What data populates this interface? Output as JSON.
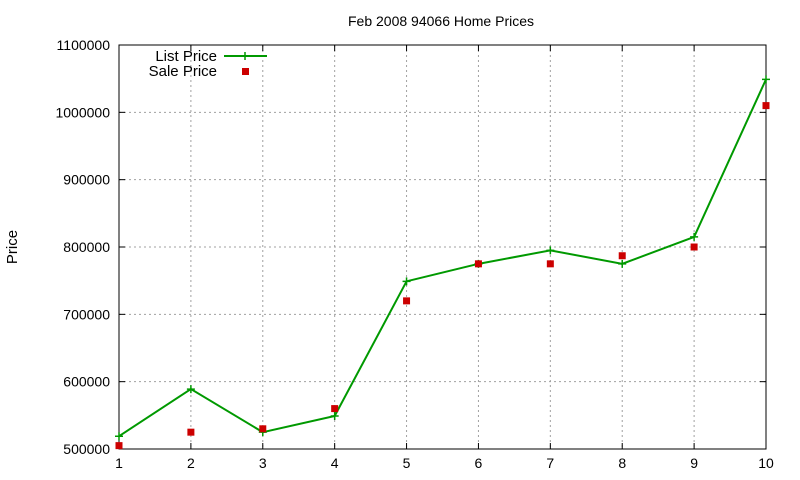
{
  "chart_data": {
    "type": "line",
    "title": "Feb 2008 94066 Home Prices",
    "xlabel": "",
    "ylabel": "Price",
    "x": [
      1,
      2,
      3,
      4,
      5,
      6,
      7,
      8,
      9,
      10
    ],
    "xlim": [
      1,
      10
    ],
    "ylim": [
      500000,
      1100000
    ],
    "yticks": [
      500000,
      600000,
      700000,
      800000,
      900000,
      1000000,
      1100000
    ],
    "xticks": [
      1,
      2,
      3,
      4,
      5,
      6,
      7,
      8,
      9,
      10
    ],
    "grid": true,
    "legend_position": "top-left",
    "series": [
      {
        "name": "List Price",
        "style": "line-with-plus-markers",
        "color": "#009900",
        "values": [
          519000,
          589000,
          525000,
          549000,
          749000,
          775000,
          795000,
          775000,
          815000,
          1049000
        ]
      },
      {
        "name": "Sale Price",
        "style": "square-points",
        "color": "#cc0000",
        "values": [
          505000,
          525000,
          530000,
          560000,
          720000,
          775000,
          775000,
          787000,
          800000,
          1010000
        ]
      }
    ]
  }
}
